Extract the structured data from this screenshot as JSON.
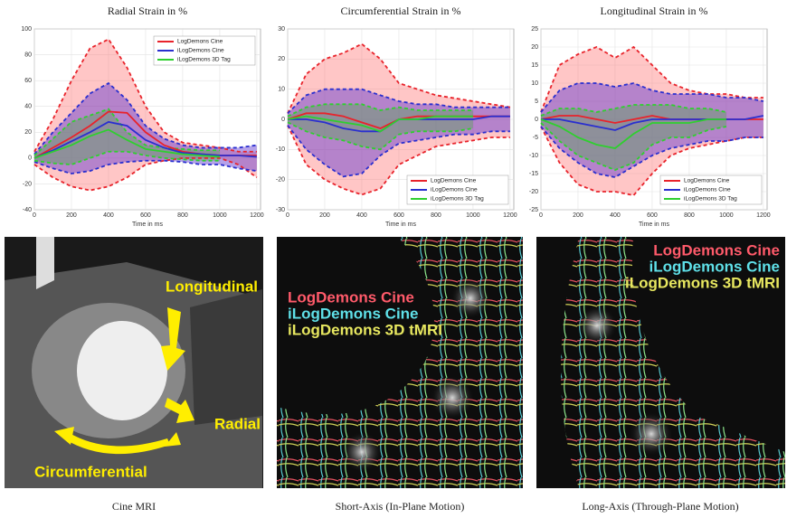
{
  "chart_data": [
    {
      "type": "line",
      "title": "Radial Strain in %",
      "x_label": "Time in ms",
      "legend": "upper right",
      "grid": true,
      "xlim": [
        0,
        1220
      ],
      "xticks": [
        0,
        200,
        400,
        600,
        800,
        1000,
        1200
      ],
      "ylim": [
        -40,
        100
      ],
      "yticks": [
        -40,
        -20,
        0,
        20,
        40,
        60,
        80,
        100
      ],
      "x": [
        0,
        100,
        200,
        300,
        400,
        500,
        600,
        700,
        800,
        900,
        1000,
        1100,
        1200
      ],
      "series": [
        {
          "name": "LogDemons Cine",
          "color": "#e8232b",
          "values": [
            0,
            8,
            16,
            25,
            36,
            35,
            20,
            10,
            5,
            3,
            2,
            2,
            2
          ],
          "upper": [
            5,
            30,
            60,
            85,
            92,
            70,
            40,
            20,
            12,
            10,
            8,
            5,
            5
          ],
          "lower": [
            -5,
            -15,
            -22,
            -25,
            -22,
            -15,
            -5,
            -2,
            0,
            0,
            0,
            -5,
            -15
          ]
        },
        {
          "name": "iLogDemons Cine",
          "color": "#2a2fcf",
          "values": [
            0,
            6,
            13,
            20,
            28,
            25,
            14,
            8,
            4,
            3,
            2,
            2,
            1
          ],
          "upper": [
            3,
            20,
            35,
            50,
            58,
            45,
            25,
            15,
            10,
            8,
            8,
            8,
            10
          ],
          "lower": [
            -3,
            -8,
            -12,
            -10,
            -5,
            -3,
            -2,
            -2,
            -3,
            -5,
            -5,
            -8,
            -10
          ]
        },
        {
          "name": "iLogDemons 3D Tag",
          "color": "#2fcf2f",
          "values": [
            0,
            5,
            10,
            17,
            22,
            14,
            7,
            5,
            3,
            2,
            1,
            null,
            null
          ],
          "upper": [
            2,
            15,
            28,
            33,
            38,
            20,
            10,
            8,
            7,
            6,
            6,
            null,
            null
          ],
          "lower": [
            -2,
            -4,
            -5,
            0,
            5,
            5,
            2,
            0,
            -1,
            -2,
            -2,
            null,
            null
          ]
        }
      ]
    },
    {
      "type": "line",
      "title": "Circumferential Strain in %",
      "x_label": "Time in ms",
      "legend": "lower right",
      "grid": true,
      "xlim": [
        0,
        1220
      ],
      "xticks": [
        0,
        200,
        400,
        600,
        800,
        1000,
        1200
      ],
      "ylim": [
        -30,
        30
      ],
      "yticks": [
        -30,
        -20,
        -10,
        0,
        10,
        20,
        30
      ],
      "x": [
        0,
        100,
        200,
        300,
        400,
        500,
        600,
        700,
        800,
        900,
        1000,
        1100,
        1200
      ],
      "series": [
        {
          "name": "LogDemons Cine",
          "color": "#e8232b",
          "values": [
            0,
            2,
            2,
            1,
            -1,
            -3,
            0,
            1,
            1,
            1,
            1,
            1,
            1
          ],
          "upper": [
            2,
            15,
            20,
            22,
            25,
            20,
            12,
            10,
            8,
            7,
            6,
            5,
            4
          ],
          "lower": [
            -2,
            -15,
            -20,
            -23,
            -25,
            -23,
            -15,
            -12,
            -9,
            -8,
            -7,
            -6,
            -6
          ]
        },
        {
          "name": "iLogDemons Cine",
          "color": "#2a2fcf",
          "values": [
            0,
            0,
            -1,
            -3,
            -4,
            -4,
            0,
            0,
            0,
            0,
            0,
            1,
            1
          ],
          "upper": [
            2,
            8,
            10,
            10,
            10,
            8,
            6,
            5,
            5,
            4,
            4,
            4,
            4
          ],
          "lower": [
            -2,
            -10,
            -15,
            -19,
            -18,
            -12,
            -8,
            -7,
            -6,
            -5,
            -5,
            -4,
            -4
          ]
        },
        {
          "name": "iLogDemons 3D Tag",
          "color": "#2fcf2f",
          "values": [
            0,
            1,
            0,
            -1,
            -2,
            -4,
            0,
            0,
            1,
            1,
            1,
            null,
            null
          ],
          "upper": [
            1,
            4,
            5,
            5,
            5,
            3,
            4,
            3,
            3,
            3,
            3,
            null,
            null
          ],
          "lower": [
            -1,
            -4,
            -6,
            -7,
            -9,
            -10,
            -5,
            -4,
            -4,
            -4,
            -3,
            null,
            null
          ]
        }
      ]
    },
    {
      "type": "line",
      "title": "Longitudinal Strain in %",
      "x_label": "Time in ms",
      "legend": "lower right",
      "grid": true,
      "xlim": [
        0,
        1220
      ],
      "xticks": [
        0,
        200,
        400,
        600,
        800,
        1000,
        1200
      ],
      "ylim": [
        -25,
        25
      ],
      "yticks": [
        -25,
        -20,
        -15,
        -10,
        -5,
        0,
        5,
        10,
        15,
        20,
        25
      ],
      "x": [
        0,
        100,
        200,
        300,
        400,
        500,
        600,
        700,
        800,
        900,
        1000,
        1100,
        1200
      ],
      "series": [
        {
          "name": "LogDemons Cine",
          "color": "#e8232b",
          "values": [
            0,
            1,
            1,
            0,
            -1,
            0,
            1,
            0,
            0,
            0,
            0,
            0,
            0
          ],
          "upper": [
            2,
            15,
            18,
            20,
            17,
            20,
            15,
            10,
            8,
            7,
            7,
            6,
            6
          ],
          "lower": [
            -2,
            -12,
            -18,
            -20,
            -20,
            -21,
            -15,
            -10,
            -8,
            -7,
            -6,
            -5,
            -5
          ]
        },
        {
          "name": "iLogDemons Cine",
          "color": "#2a2fcf",
          "values": [
            0,
            0,
            -1,
            -2,
            -3,
            -1,
            0,
            0,
            0,
            0,
            0,
            0,
            1
          ],
          "upper": [
            2,
            8,
            10,
            10,
            9,
            10,
            8,
            7,
            7,
            7,
            6,
            6,
            5
          ],
          "lower": [
            -2,
            -8,
            -12,
            -15,
            -16,
            -13,
            -10,
            -8,
            -7,
            -6,
            -6,
            -5,
            -5
          ]
        },
        {
          "name": "iLogDemons 3D Tag",
          "color": "#2fcf2f",
          "values": [
            0,
            -2,
            -5,
            -7,
            -8,
            -4,
            -1,
            -1,
            -1,
            0,
            0,
            null,
            null
          ],
          "upper": [
            1,
            3,
            3,
            2,
            3,
            4,
            4,
            4,
            3,
            3,
            2,
            null,
            null
          ],
          "lower": [
            -1,
            -6,
            -10,
            -12,
            -14,
            -12,
            -7,
            -5,
            -5,
            -3,
            -2,
            null,
            null
          ]
        }
      ]
    }
  ],
  "images": [
    {
      "caption": "Cine MRI",
      "labels": [
        "Longitudinal",
        "Radial",
        "Circumferential"
      ]
    },
    {
      "caption": "Short-Axis (In-Plane Motion)",
      "labels": [
        "LogDemons Cine",
        "iLogDemons Cine",
        "iLogDemons 3D tMRI"
      ]
    },
    {
      "caption": "Long-Axis (Through-Plane Motion)",
      "labels": [
        "LogDemons Cine",
        "iLogDemons Cine",
        "iLogDemons 3D tMRI"
      ]
    }
  ]
}
